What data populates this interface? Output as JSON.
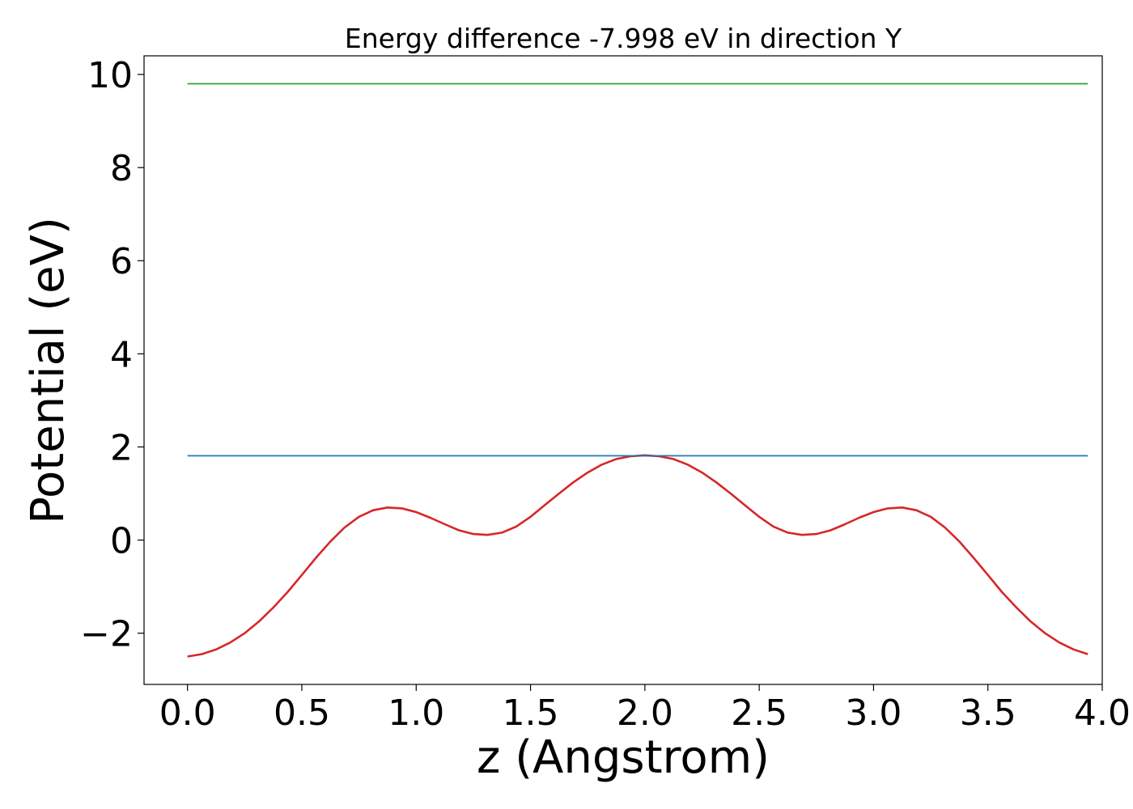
{
  "chart_data": {
    "type": "line",
    "title": "Energy difference -7.998 eV in direction Y",
    "xlabel": "z (Angstrom)",
    "ylabel": "Potential (eV)",
    "xlim": [
      -0.19,
      4.0
    ],
    "ylim": [
      -3.1,
      10.4
    ],
    "xticks": [
      0.0,
      0.5,
      1.0,
      1.5,
      2.0,
      2.5,
      3.0,
      3.5,
      4.0
    ],
    "xtick_labels": [
      "0.0",
      "0.5",
      "1.0",
      "1.5",
      "2.0",
      "2.5",
      "3.0",
      "3.5",
      "4.0"
    ],
    "yticks": [
      -2,
      0,
      2,
      4,
      6,
      8,
      10
    ],
    "ytick_labels": [
      "−2",
      "0",
      "2",
      "4",
      "6",
      "8",
      "10"
    ],
    "grid": false,
    "series": [
      {
        "color": "#d62728",
        "x": [
          0.0,
          0.062,
          0.125,
          0.187,
          0.25,
          0.312,
          0.375,
          0.437,
          0.5,
          0.562,
          0.625,
          0.687,
          0.75,
          0.812,
          0.875,
          0.937,
          1.0,
          1.062,
          1.125,
          1.187,
          1.25,
          1.312,
          1.375,
          1.437,
          1.5,
          1.562,
          1.625,
          1.687,
          1.75,
          1.812,
          1.875,
          1.937,
          2.0,
          2.062,
          2.125,
          2.187,
          2.25,
          2.312,
          2.375,
          2.437,
          2.5,
          2.562,
          2.625,
          2.687,
          2.75,
          2.812,
          2.875,
          2.937,
          3.0,
          3.062,
          3.125,
          3.187,
          3.25,
          3.312,
          3.375,
          3.437,
          3.5,
          3.562,
          3.625,
          3.687,
          3.75,
          3.812,
          3.875,
          3.937
        ],
        "y": [
          -2.5,
          -2.45,
          -2.35,
          -2.2,
          -2.0,
          -1.75,
          -1.45,
          -1.12,
          -0.75,
          -0.38,
          -0.03,
          0.27,
          0.5,
          0.64,
          0.7,
          0.68,
          0.6,
          0.48,
          0.34,
          0.21,
          0.13,
          0.11,
          0.16,
          0.29,
          0.5,
          0.75,
          1.0,
          1.24,
          1.45,
          1.62,
          1.74,
          1.8,
          1.82,
          1.8,
          1.74,
          1.62,
          1.45,
          1.24,
          1.0,
          0.75,
          0.5,
          0.29,
          0.16,
          0.11,
          0.13,
          0.21,
          0.34,
          0.48,
          0.6,
          0.68,
          0.7,
          0.64,
          0.5,
          0.27,
          -0.03,
          -0.38,
          -0.75,
          -1.12,
          -1.45,
          -1.75,
          -2.0,
          -2.2,
          -2.35,
          -2.45
        ]
      },
      {
        "color": "#1f77b4",
        "x": [
          0.0,
          3.937
        ],
        "y": [
          1.81,
          1.81
        ]
      },
      {
        "color": "#2ca02c",
        "x": [
          0.0,
          3.937
        ],
        "y": [
          9.8,
          9.8
        ]
      }
    ]
  }
}
